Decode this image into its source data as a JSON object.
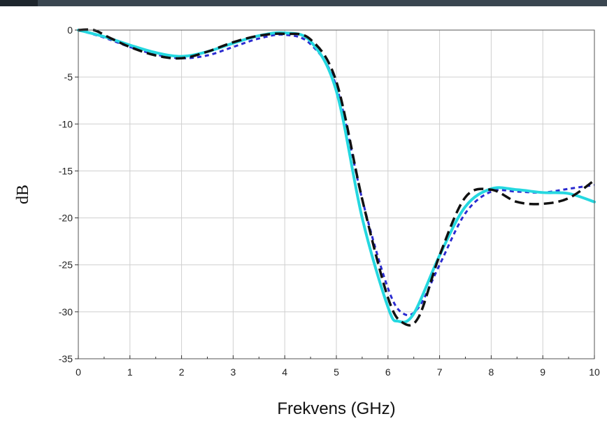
{
  "chart_data": {
    "type": "line",
    "title": "",
    "xlabel": "Frekvens (GHz)",
    "ylabel": "dB",
    "xlim": [
      0,
      10
    ],
    "ylim": [
      -35,
      0
    ],
    "x_ticks": [
      "0",
      "1",
      "2",
      "3",
      "4",
      "5",
      "6",
      "7",
      "8",
      "9",
      "10"
    ],
    "y_ticks": [
      "0",
      "-5",
      "-10",
      "-15",
      "-20",
      "-25",
      "-30",
      "-35"
    ],
    "grid": true,
    "legend": "none",
    "series": [
      {
        "color": "#2b2bd0",
        "style": "dotted",
        "x": [
          0,
          0.5,
          1,
          1.5,
          2,
          2.5,
          3,
          3.5,
          4,
          4.5,
          5,
          5.5,
          6,
          6.3,
          6.6,
          7,
          7.5,
          8,
          8.5,
          9,
          9.5,
          10
        ],
        "y": [
          0,
          -0.8,
          -1.8,
          -2.6,
          -3.0,
          -2.7,
          -1.8,
          -0.9,
          -0.5,
          -1.5,
          -6,
          -18,
          -27.5,
          -30.2,
          -29.5,
          -25,
          -19.5,
          -17.2,
          -17.2,
          -17.3,
          -16.9,
          -16.5
        ]
      },
      {
        "color": "#25d8e0",
        "style": "solid",
        "x": [
          0,
          0.5,
          1,
          1.5,
          2,
          2.5,
          3,
          3.5,
          4,
          4.5,
          5,
          5.5,
          6,
          6.2,
          6.5,
          7,
          7.5,
          8,
          8.5,
          9,
          9.5,
          10
        ],
        "y": [
          0,
          -0.7,
          -1.6,
          -2.4,
          -2.8,
          -2.3,
          -1.4,
          -0.6,
          -0.3,
          -1.2,
          -6.5,
          -20,
          -29.5,
          -31.0,
          -30.2,
          -24,
          -18.8,
          -16.9,
          -17.0,
          -17.3,
          -17.4,
          -18.3
        ]
      },
      {
        "color": "#111111",
        "style": "dashed",
        "x": [
          0,
          0.3,
          0.6,
          1,
          1.5,
          2,
          2.5,
          3,
          3.5,
          4,
          4.5,
          5,
          5.5,
          6,
          6.3,
          6.6,
          7,
          7.5,
          8,
          8.5,
          9,
          9.5,
          10
        ],
        "y": [
          0,
          0,
          -0.8,
          -1.8,
          -2.7,
          -3.0,
          -2.3,
          -1.3,
          -0.6,
          -0.4,
          -1.0,
          -5.5,
          -18,
          -28.5,
          -31.2,
          -30.5,
          -24,
          -17.8,
          -17.0,
          -18.3,
          -18.5,
          -17.9,
          -16.0
        ]
      }
    ]
  }
}
